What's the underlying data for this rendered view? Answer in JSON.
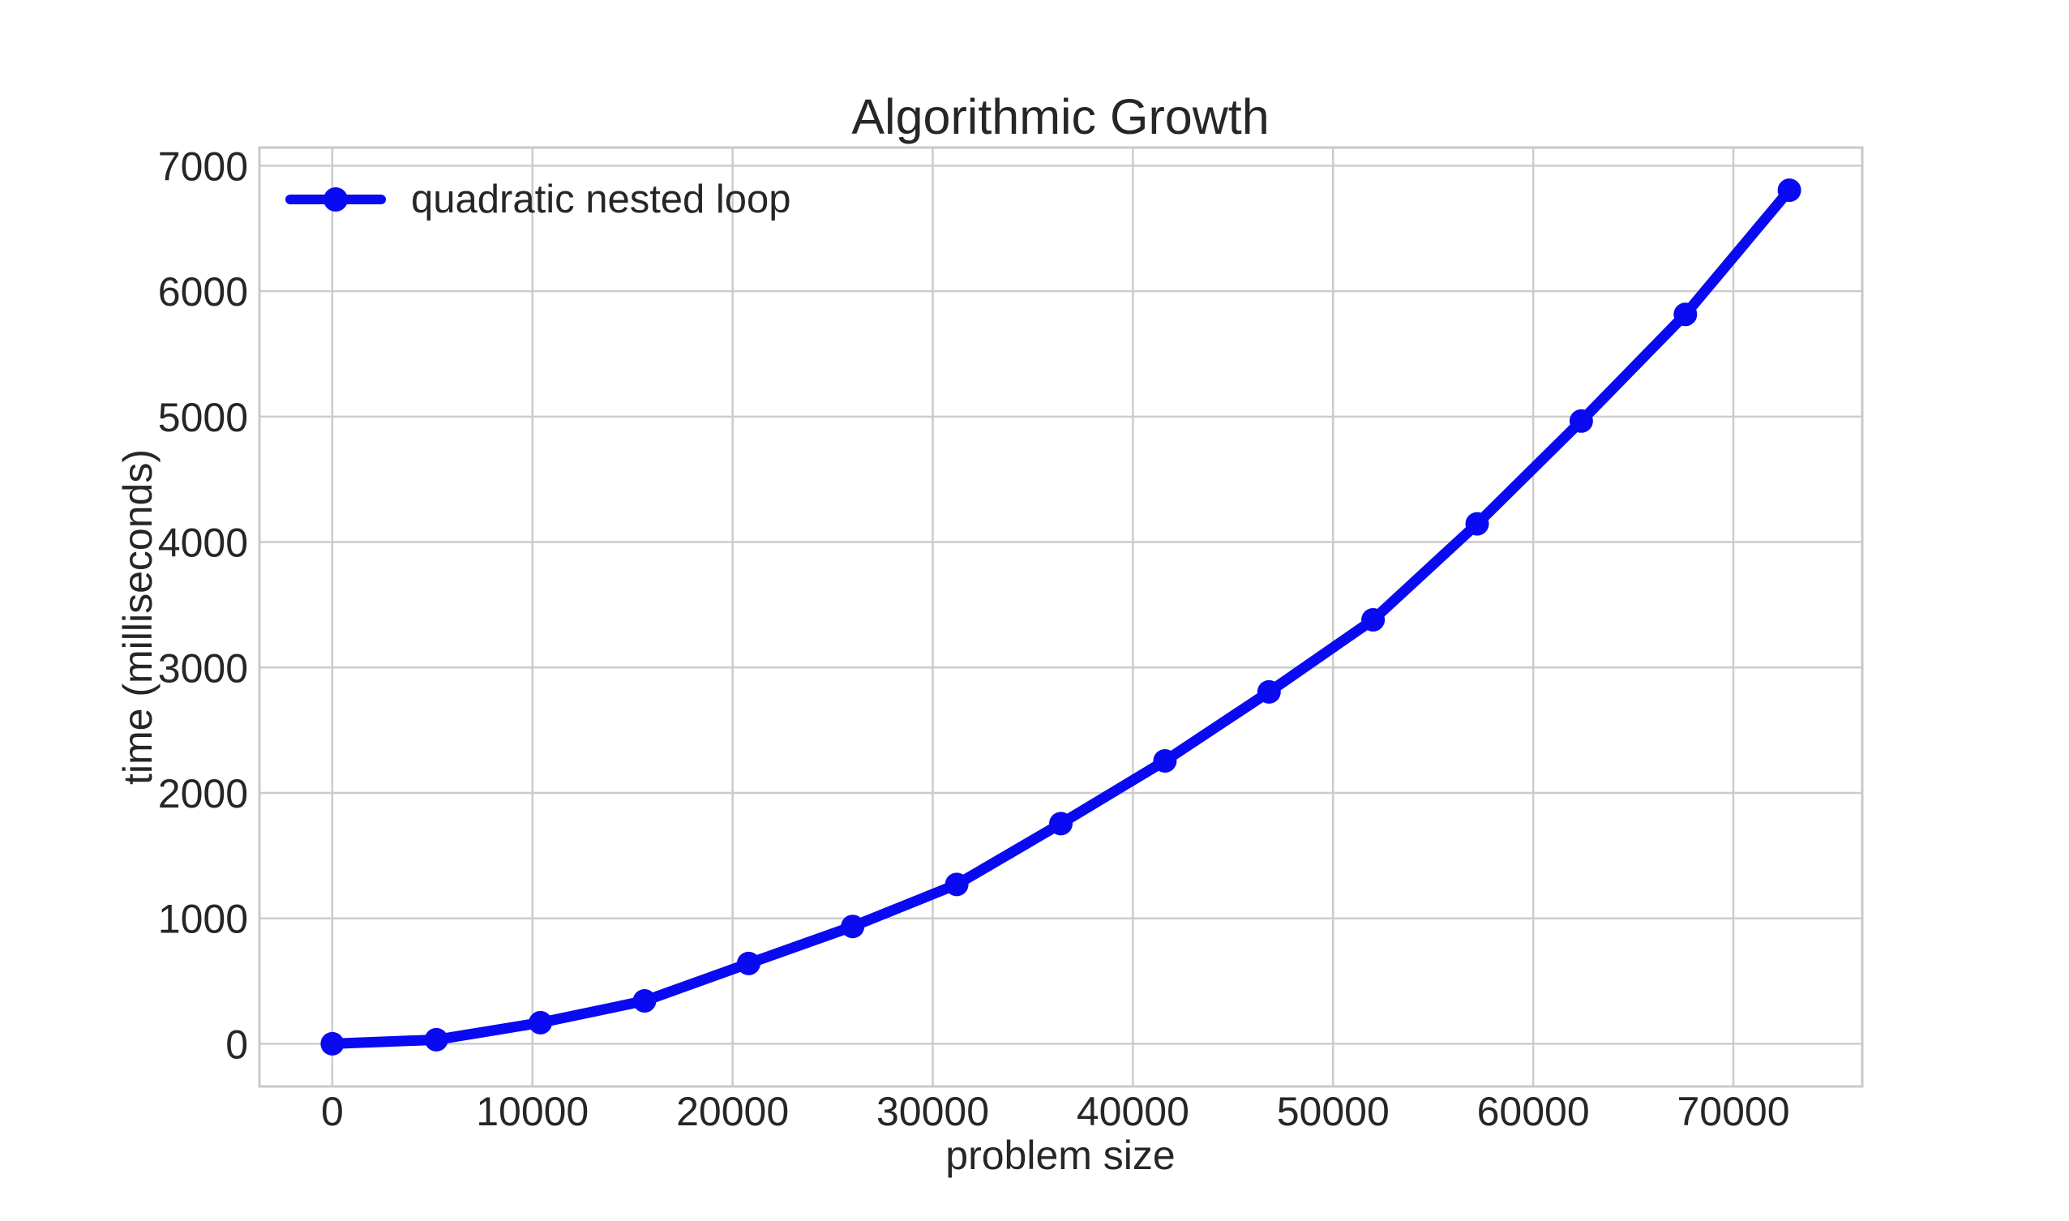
{
  "figure": {
    "background": "#ffffff"
  },
  "chart_data": {
    "type": "line",
    "title": "Algorithmic Growth",
    "xlabel": "problem size",
    "ylabel": "time (milliseconds)",
    "xlim": [
      -3640,
      76440
    ],
    "ylim": [
      -340,
      7145
    ],
    "xticks": [
      0,
      10000,
      20000,
      30000,
      40000,
      50000,
      60000,
      70000
    ],
    "yticks": [
      0,
      1000,
      2000,
      3000,
      4000,
      5000,
      6000,
      7000
    ],
    "grid": true,
    "legend_position": "upper-left",
    "series": [
      {
        "name": "quadratic nested loop",
        "color": "#0a0af2",
        "marker": "circle",
        "x": [
          0,
          5200,
          10400,
          15600,
          20800,
          26000,
          31200,
          36400,
          41600,
          46800,
          52000,
          57200,
          62400,
          67600,
          72800
        ],
        "y": [
          0,
          32,
          168,
          342,
          640,
          935,
          1270,
          1755,
          2255,
          2805,
          3380,
          4145,
          4965,
          5815,
          6805
        ]
      }
    ],
    "colors": {
      "grid": "#cccccc",
      "spine": "#c9c9c9",
      "text": "#262626"
    }
  }
}
